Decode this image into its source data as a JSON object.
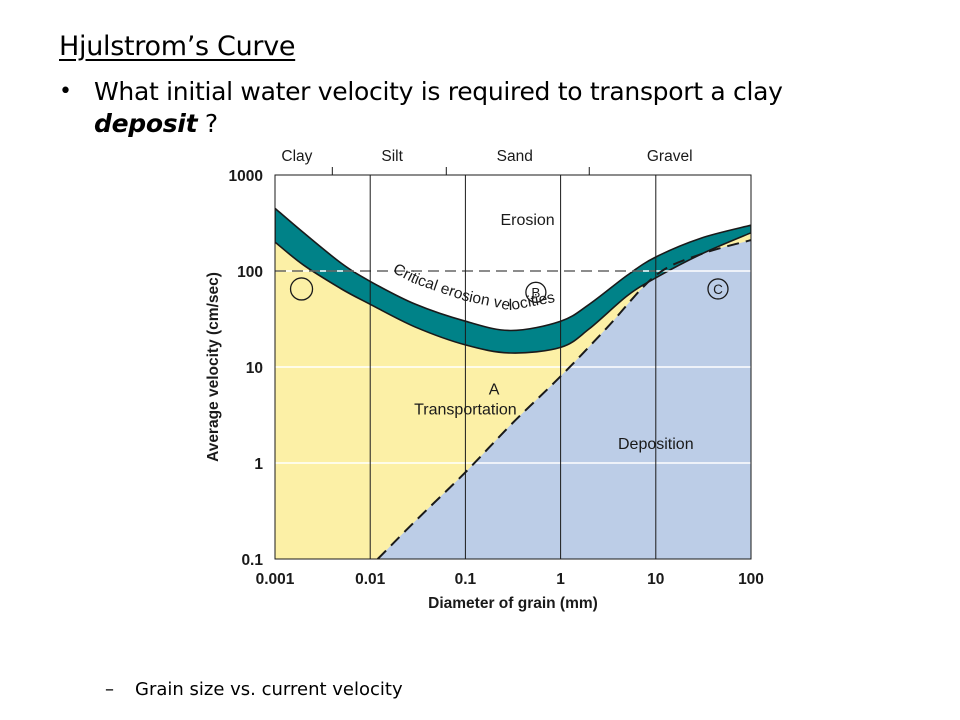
{
  "slide": {
    "title": "Hjulstrom’s Curve",
    "bullet_marker": "•",
    "question_pre": "What initial water velocity is required to transport a clay ",
    "question_emph": "deposit",
    "question_post": " ?",
    "sub_dash": "–",
    "sub_bullet": "Grain size vs. current velocity"
  },
  "chart_data": {
    "type": "area",
    "title": "",
    "xlabel": "Diameter of grain (mm)",
    "ylabel": "Average velocity (cm/sec)",
    "xscale": "log",
    "yscale": "log",
    "xlim": [
      0.001,
      100
    ],
    "ylim": [
      0.1,
      1000
    ],
    "x_ticks": [
      "0.001",
      "0.01",
      "0.1",
      "1",
      "10",
      "100"
    ],
    "y_ticks": [
      "1000",
      "100",
      "10",
      "1",
      "0.1"
    ],
    "grain_classes": [
      "Clay",
      "Silt",
      "Sand",
      "Gravel"
    ],
    "series": [
      {
        "name": "Critical erosion velocities (upper)",
        "x": [
          0.001,
          0.002,
          0.005,
          0.01,
          0.03,
          0.1,
          0.3,
          1,
          2,
          5,
          10,
          30,
          100
        ],
        "values": [
          450,
          250,
          120,
          78,
          45,
          30,
          24,
          30,
          45,
          90,
          140,
          220,
          300
        ]
      },
      {
        "name": "Critical erosion velocities (lower)",
        "x": [
          0.001,
          0.002,
          0.005,
          0.01,
          0.03,
          0.1,
          0.3,
          1,
          2,
          5,
          10,
          30,
          100
        ],
        "values": [
          200,
          115,
          65,
          45,
          26,
          17,
          14,
          16,
          25,
          55,
          85,
          150,
          250
        ]
      },
      {
        "name": "Deposition boundary",
        "x": [
          0.012,
          0.03,
          0.1,
          0.3,
          1,
          3,
          10,
          30,
          100
        ],
        "values": [
          0.1,
          0.25,
          0.8,
          2.5,
          8,
          25,
          90,
          150,
          210
        ]
      }
    ],
    "region_labels": [
      "Erosion",
      "Critical erosion velocities",
      "Transportation",
      "Deposition"
    ],
    "annotations": [
      "A",
      "B",
      "C"
    ],
    "reference_line": {
      "y": 100,
      "x": [
        0.001,
        10
      ],
      "style": "dashed"
    },
    "grid": true,
    "colors": {
      "erosion_band": "#008288",
      "transportation": "#fcf0a6",
      "deposition": "#bccde7",
      "erosion": "#ffffff"
    }
  }
}
